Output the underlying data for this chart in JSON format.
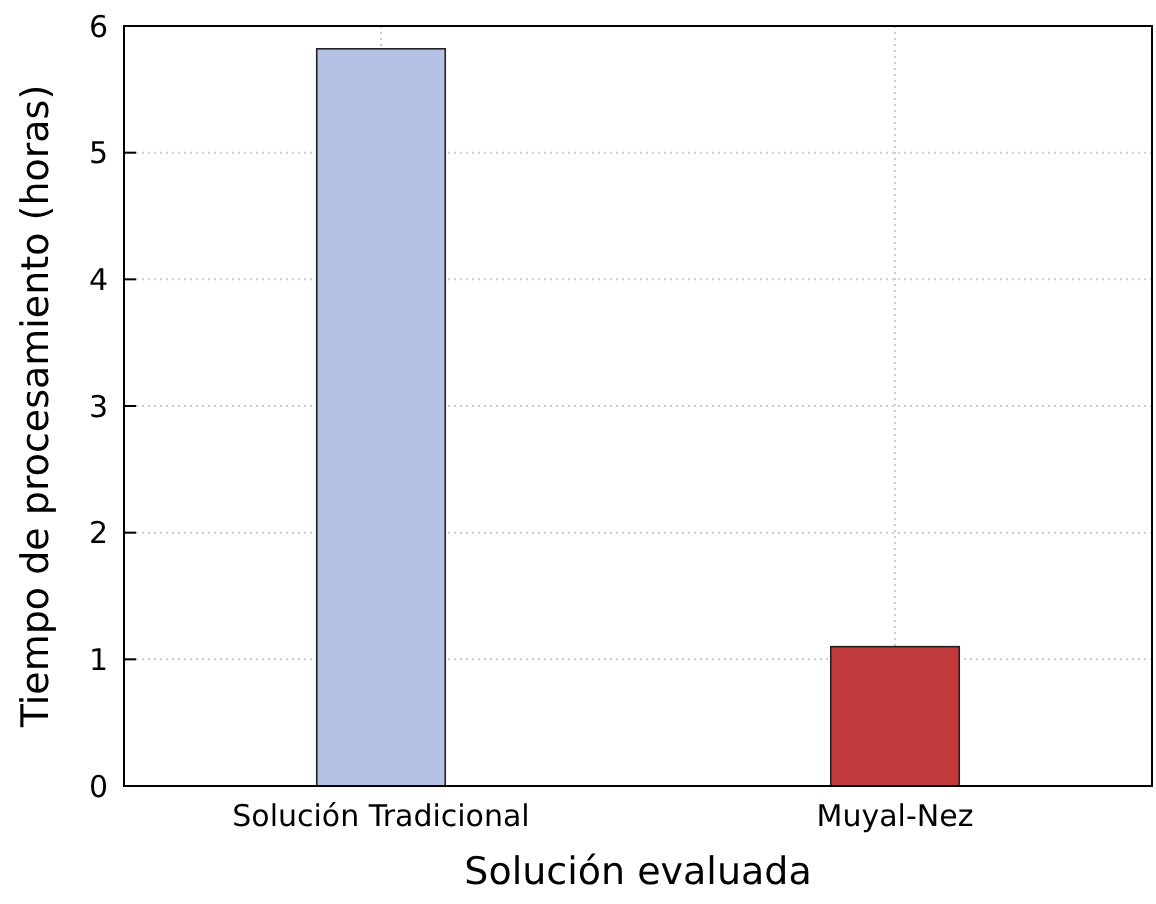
{
  "chart_data": {
    "type": "bar",
    "xlabel": "Solución evaluada",
    "ylabel": "Tiempo de procesamiento (horas)",
    "categories": [
      "Solución Tradicional",
      "Muyal-Nez"
    ],
    "values": [
      5.82,
      1.1
    ],
    "colors": [
      "#b4c2e6",
      "#c0393b"
    ],
    "ylim": [
      0,
      6
    ],
    "yticks": [
      0,
      1,
      2,
      3,
      4,
      5,
      6
    ],
    "grid": true
  }
}
